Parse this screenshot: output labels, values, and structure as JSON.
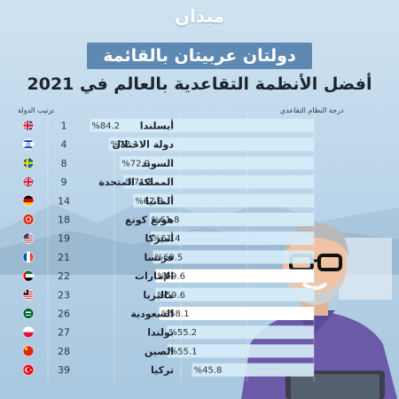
{
  "brand": {
    "logo_text": "ميدان"
  },
  "header": {
    "title": "دولتان عربيتان بالقائمة",
    "subtitle": "أفضل الأنظمة التقاعدية بالعالم في 2021"
  },
  "columns": {
    "rank_label": "ترتيب الدولة",
    "score_label": "درجة النظام التقاعدي"
  },
  "colors": {
    "bar_light": "#d6edf8",
    "bar_highlight": "#ffffff",
    "label_dark": "#1d2430",
    "headline_bg": "#5e89b3"
  },
  "chart_data": {
    "type": "bar",
    "orientation": "horizontal",
    "xlim": [
      0,
      100
    ],
    "rows": [
      {
        "country": "أيسلندا",
        "rank": "1",
        "value": 84.2,
        "label": "%84.2",
        "flag": "iceland-flag",
        "highlight": false
      },
      {
        "country": "دولة الاحتلال",
        "rank": "4",
        "value": 77.1,
        "label": "%77.1",
        "flag": "israel-flag",
        "highlight": false
      },
      {
        "country": "السويد",
        "rank": "8",
        "value": 72.9,
        "label": "%72.9",
        "flag": "sweden-flag",
        "highlight": false
      },
      {
        "country": "المملكة المتحدة",
        "rank": "9",
        "value": 71.6,
        "label": "%71.6",
        "flag": "uk-flag",
        "highlight": false
      },
      {
        "country": "ألمانيا",
        "rank": "14",
        "value": 67.9,
        "label": "%67.9",
        "flag": "germany-flag",
        "highlight": false
      },
      {
        "country": "هونغ كونغ",
        "rank": "18",
        "value": 61.8,
        "label": "%61.8",
        "flag": "hongkong-flag",
        "highlight": false
      },
      {
        "country": "أميركا",
        "rank": "19",
        "value": 61.4,
        "label": "%61.4",
        "flag": "usa-flag",
        "highlight": false
      },
      {
        "country": "فرنسا",
        "rank": "21",
        "value": 60.5,
        "label": "%60.5",
        "flag": "france-flag",
        "highlight": false
      },
      {
        "country": "الإمارات",
        "rank": "22",
        "value": 59.6,
        "label": "%59.6",
        "flag": "uae-flag",
        "highlight": true
      },
      {
        "country": "ماليزيا",
        "rank": "23",
        "value": 59.6,
        "label": "%59.6",
        "flag": "malaysia-flag",
        "highlight": false
      },
      {
        "country": "السعودية",
        "rank": "26",
        "value": 58.1,
        "label": "%58.1",
        "flag": "saudi-flag",
        "highlight": true
      },
      {
        "country": "بولندا",
        "rank": "27",
        "value": 55.2,
        "label": "%55.2",
        "flag": "poland-flag",
        "highlight": false
      },
      {
        "country": "الصين",
        "rank": "28",
        "value": 55.1,
        "label": "%55.1",
        "flag": "china-flag",
        "highlight": false
      },
      {
        "country": "تركيا",
        "rank": "39",
        "value": 45.8,
        "label": "%45.8",
        "flag": "turkey-flag",
        "highlight": false
      }
    ]
  }
}
